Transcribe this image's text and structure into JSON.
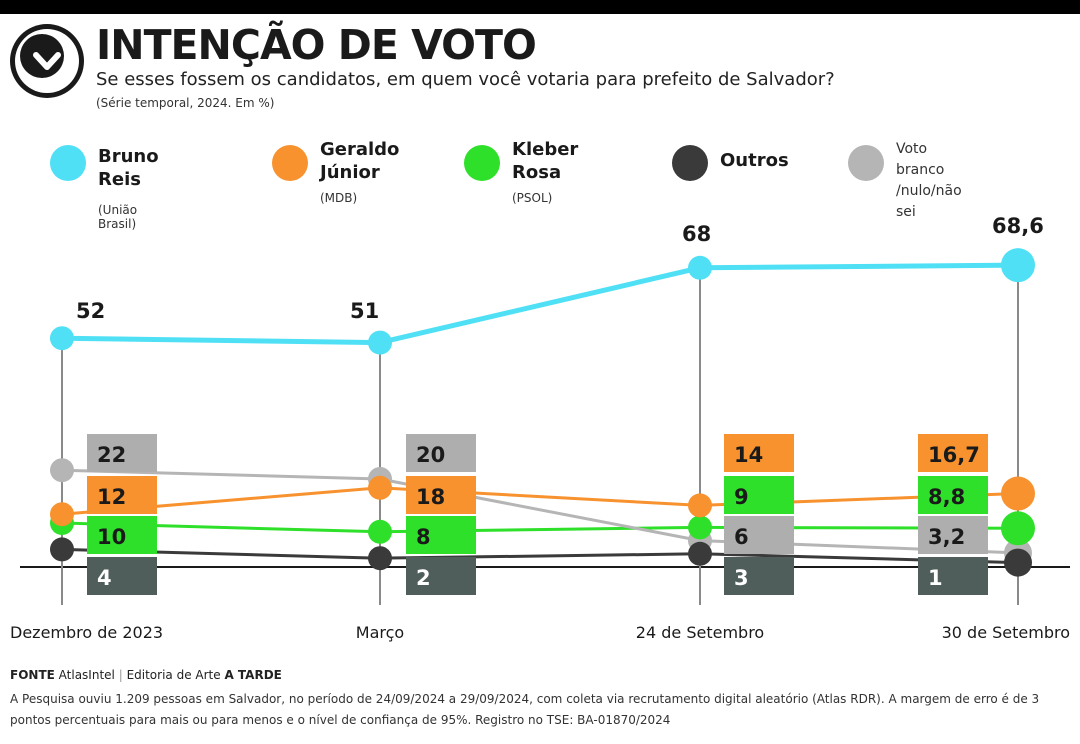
{
  "header": {
    "title": "INTENÇÃO DE VOTO",
    "subtitle": "Se esses fossem os candidatos, em quem você votaria para prefeito de Salvador?",
    "note": "(Série temporal, 2024. Em %)"
  },
  "legend": [
    {
      "name": "Bruno\nReis",
      "party": "(União Brasil)",
      "color": "#4fe0f5"
    },
    {
      "name": "Geraldo\nJúnior",
      "party": "(MDB)",
      "color": "#f7922e"
    },
    {
      "name": "Kleber\nRosa",
      "party": "(PSOL)",
      "color": "#2fe02a"
    },
    {
      "name": "Outros",
      "party": "",
      "color": "#3a3a3a"
    },
    {
      "name": "Voto branco\n/nulo/não sei",
      "party": "",
      "color": "#b5b5b5"
    }
  ],
  "chart_data": {
    "type": "line",
    "categories": [
      "Dezembro de 2023",
      "Março",
      "24 de Setembro",
      "30 de Setembro"
    ],
    "series": [
      {
        "name": "Bruno Reis",
        "color": "#4fe0f5",
        "values": [
          52,
          51,
          68,
          68.6
        ],
        "labels": [
          "52",
          "51",
          "68",
          "68,6"
        ]
      },
      {
        "name": "Voto branco/nulo/não sei",
        "color": "#b5b5b5",
        "values": [
          22,
          20,
          6,
          3.2
        ],
        "labels": [
          "22",
          "20",
          "6",
          "3,2"
        ]
      },
      {
        "name": "Geraldo Júnior",
        "color": "#f7922e",
        "values": [
          12,
          18,
          14,
          16.7
        ],
        "labels": [
          "12",
          "18",
          "14",
          "16,7"
        ]
      },
      {
        "name": "Kleber Rosa",
        "color": "#2fe02a",
        "values": [
          10,
          8,
          9,
          8.8
        ],
        "labels": [
          "10",
          "8",
          "9",
          "8,8"
        ]
      },
      {
        "name": "Outros",
        "color": "#3a3a3a",
        "values": [
          4,
          2,
          3,
          1
        ],
        "labels": [
          "4",
          "2",
          "3",
          "1"
        ]
      }
    ],
    "box_colors": {
      "gray": "#aeaeae",
      "orange": "#f7922e",
      "green": "#2fe02a",
      "dark": "#4f5d5b"
    }
  },
  "footer": {
    "source_label": "FONTE",
    "source": "AtlasIntel",
    "credit_prefix": "Editoria de Arte",
    "credit": "A TARDE",
    "methodology": "A Pesquisa ouviu 1.209 pessoas em Salvador, no período de 24/09/2024 a 29/09/2024, com coleta via recrutamento digital aleatório (Atlas RDR). A margem de erro é de 3 pontos percentuais para mais ou para menos e o nível de confiança de 95%. Registro no TSE: BA-01870/2024"
  }
}
